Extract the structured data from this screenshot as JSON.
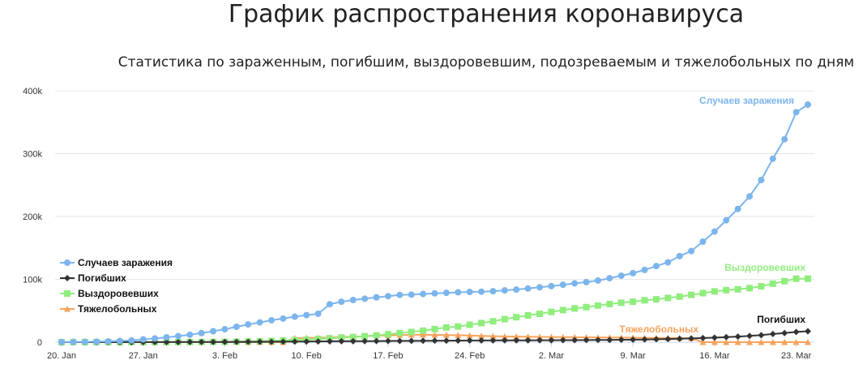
{
  "title": "График распространения коронавируса",
  "subtitle": "Статистика по зараженным, погибшим, выздоровевшим, подозреваемым и тяжелобольных по дням",
  "chart_data": {
    "type": "line",
    "x": [
      "20.01",
      "21.01",
      "22.01",
      "23.01",
      "24.01",
      "25.01",
      "26.01",
      "27.01",
      "28.01",
      "29.01",
      "30.01",
      "31.01",
      "01.02",
      "02.02",
      "03.02",
      "04.02",
      "05.02",
      "06.02",
      "07.02",
      "08.02",
      "09.02",
      "10.02",
      "11.02",
      "12.02",
      "13.02",
      "14.02",
      "15.02",
      "16.02",
      "17.02",
      "18.02",
      "19.02",
      "20.02",
      "21.02",
      "22.02",
      "23.02",
      "24.02",
      "25.02",
      "26.02",
      "27.02",
      "28.02",
      "29.02",
      "01.03",
      "02.03",
      "03.03",
      "04.03",
      "05.03",
      "06.03",
      "07.03",
      "08.03",
      "09.03",
      "10.03",
      "11.03",
      "12.03",
      "13.03",
      "14.03",
      "15.03",
      "16.03",
      "17.03",
      "18.03",
      "19.03",
      "20.03",
      "21.03",
      "22.03",
      "23.03",
      "24.03"
    ],
    "x_ticks": [
      "20. Jan",
      "27. Jan",
      "3. Feb",
      "10. Feb",
      "17. Feb",
      "24. Feb",
      "2. Mar",
      "9. Mar",
      "16. Mar",
      "23. Mar"
    ],
    "y_ticks": [
      "0",
      "100k",
      "200k",
      "300k",
      "400k"
    ],
    "ylim": [
      0,
      400000
    ],
    "grid": "horizontal",
    "legend_position": "bottom-left",
    "series": [
      {
        "name": "Случаев заражения",
        "color": "#7cb5ec",
        "marker": "circle",
        "end_label": "Случаев заражения",
        "values": [
          300,
          440,
          580,
          850,
          1300,
          2000,
          2800,
          4500,
          6000,
          7800,
          9700,
          11800,
          14500,
          17400,
          20600,
          24500,
          28300,
          31500,
          34900,
          37600,
          40600,
          43100,
          45200,
          60400,
          64400,
          67100,
          69200,
          71300,
          73300,
          75200,
          75700,
          76700,
          77700,
          78500,
          79400,
          80000,
          80400,
          81100,
          82400,
          83700,
          85400,
          87300,
          89200,
          91400,
          93600,
          95600,
          98100,
          101800,
          105800,
          109800,
          115000,
          121100,
          127000,
          137000,
          145000,
          160000,
          176000,
          194000,
          212000,
          232000,
          258000,
          292000,
          323000,
          366000,
          378000
        ]
      },
      {
        "name": "Погибших",
        "color": "#333333",
        "marker": "diamond",
        "end_label": "Погибших",
        "values": [
          6,
          9,
          17,
          25,
          41,
          56,
          80,
          106,
          132,
          170,
          213,
          259,
          304,
          362,
          426,
          492,
          565,
          638,
          724,
          813,
          910,
          1018,
          1115,
          1367,
          1383,
          1526,
          1669,
          1775,
          1873,
          2009,
          2126,
          2247,
          2360,
          2460,
          2618,
          2699,
          2763,
          2800,
          2858,
          2923,
          2977,
          3050,
          3117,
          3202,
          3285,
          3387,
          3494,
          3599,
          3827,
          4000,
          4300,
          4700,
          5000,
          5500,
          6000,
          6600,
          7200,
          8000,
          8900,
          10000,
          11200,
          13000,
          14500,
          16300,
          17400
        ]
      },
      {
        "name": "Выздоровевших",
        "color": "#90ed7d",
        "marker": "square",
        "end_label": "Выздоровевших",
        "values": [
          25,
          28,
          30,
          35,
          40,
          50,
          60,
          100,
          125,
          140,
          170,
          240,
          340,
          470,
          620,
          850,
          1150,
          1540,
          2050,
          2650,
          3300,
          4000,
          5100,
          6200,
          7400,
          8100,
          9500,
          10800,
          12700,
          14500,
          16200,
          18300,
          20900,
          23400,
          24900,
          27700,
          30400,
          33300,
          36700,
          39800,
          42700,
          45100,
          48200,
          51100,
          53700,
          55800,
          58300,
          60700,
          62800,
          64400,
          66700,
          68300,
          70400,
          72600,
          75200,
          78100,
          80800,
          82800,
          84100,
          86000,
          89000,
          93000,
          97000,
          101000,
          101000
        ]
      },
      {
        "name": "Тяжелобольных",
        "color": "#f7a35c",
        "marker": "triangle",
        "end_label": "Тяжелобольных",
        "values": [
          0,
          0,
          0,
          0,
          0,
          0,
          0,
          0,
          0,
          0,
          0,
          0,
          0,
          0,
          0,
          0,
          0,
          0,
          0,
          0,
          6500,
          6800,
          7000,
          7500,
          8200,
          8800,
          9600,
          10300,
          10900,
          11400,
          11700,
          11700,
          11600,
          11400,
          11100,
          10600,
          10000,
          9600,
          9100,
          8900,
          8700,
          8400,
          8300,
          8100,
          7900,
          7800,
          7600,
          7500,
          7400,
          7200,
          7000,
          6800,
          6700,
          6600,
          6500,
          0,
          0,
          0,
          0,
          0,
          0,
          0,
          0,
          0,
          0
        ]
      }
    ]
  }
}
